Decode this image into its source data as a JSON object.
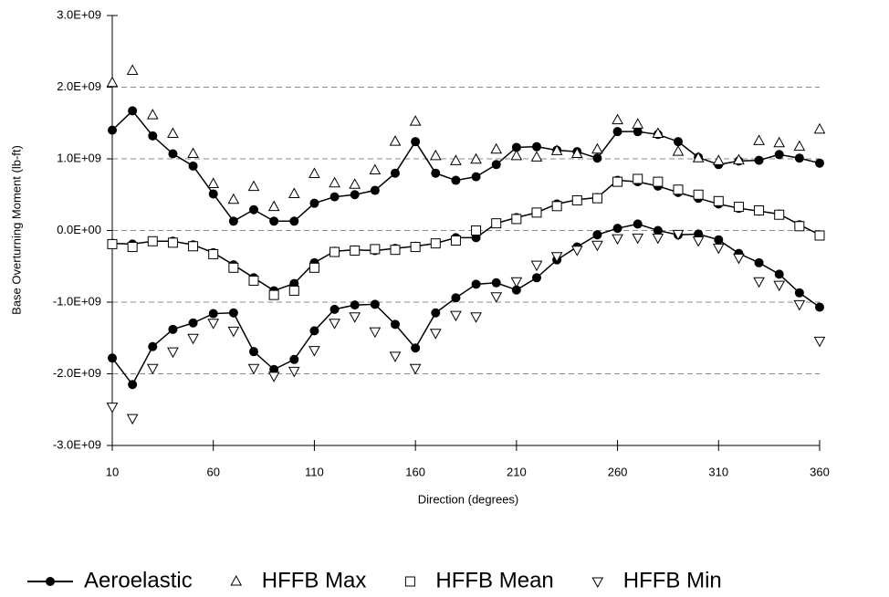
{
  "chart_data": {
    "type": "line",
    "x_label": "Direction (degrees)",
    "y_label": "Base Overturning Moment (lb-ft)",
    "x": [
      10,
      20,
      30,
      40,
      50,
      60,
      70,
      80,
      90,
      100,
      110,
      120,
      130,
      140,
      150,
      160,
      170,
      180,
      190,
      200,
      210,
      220,
      230,
      240,
      250,
      260,
      270,
      280,
      290,
      300,
      310,
      320,
      330,
      340,
      350,
      360
    ],
    "xlim": [
      10,
      360
    ],
    "xticks": [
      10,
      60,
      110,
      160,
      210,
      260,
      310,
      360
    ],
    "ylim": [
      -3000000000.0,
      3000000000.0
    ],
    "yticks": [
      {
        "value": -3000000000.0,
        "label": "-3.0E+09"
      },
      {
        "value": -2000000000.0,
        "label": "-2.0E+09"
      },
      {
        "value": -1000000000.0,
        "label": "-1.0E+09"
      },
      {
        "value": 0,
        "label": "0.0E+00"
      },
      {
        "value": 1000000000.0,
        "label": "1.0E+09"
      },
      {
        "value": 2000000000.0,
        "label": "2.0E+09"
      },
      {
        "value": 3000000000.0,
        "label": "3.0E+09"
      }
    ],
    "grid": true,
    "legend": "bottom",
    "series": [
      {
        "name": "Aeroelastic",
        "color": "#000000",
        "marker": "circle",
        "line": true,
        "values": [
          1400000000.0,
          1670000000.0,
          1320000000.0,
          1070000000.0,
          900000000.0,
          510000000.0,
          130000000.0,
          290000000.0,
          130000000.0,
          130000000.0,
          380000000.0,
          470000000.0,
          500000000.0,
          560000000.0,
          800000000.0,
          1240000000.0,
          800000000.0,
          700000000.0,
          750000000.0,
          920000000.0,
          1160000000.0,
          1170000000.0,
          1120000000.0,
          1100000000.0,
          1010000000.0,
          1380000000.0,
          1380000000.0,
          1340000000.0,
          1240000000.0,
          1020000000.0,
          920000000.0,
          970000000.0,
          980000000.0,
          1060000000.0,
          1010000000.0,
          940000000.0
        ]
      },
      {
        "color": "#000000",
        "marker": "circle",
        "line": true,
        "values": [
          -180000000.0,
          -190000000.0,
          -150000000.0,
          -150000000.0,
          -200000000.0,
          -310000000.0,
          -480000000.0,
          -660000000.0,
          -840000000.0,
          -740000000.0,
          -450000000.0,
          -290000000.0,
          -270000000.0,
          -280000000.0,
          -250000000.0,
          -220000000.0,
          -180000000.0,
          -100000000.0,
          -100000000.0,
          100000000.0,
          180000000.0,
          250000000.0,
          370000000.0,
          430000000.0,
          460000000.0,
          700000000.0,
          680000000.0,
          620000000.0,
          530000000.0,
          450000000.0,
          370000000.0,
          310000000.0,
          270000000.0,
          230000000.0,
          80000000.0,
          -60000000.0
        ]
      },
      {
        "color": "#000000",
        "marker": "circle",
        "line": true,
        "values": [
          -1780000000.0,
          -2150000000.0,
          -1620000000.0,
          -1380000000.0,
          -1290000000.0,
          -1160000000.0,
          -1150000000.0,
          -1690000000.0,
          -1940000000.0,
          -1800000000.0,
          -1400000000.0,
          -1100000000.0,
          -1040000000.0,
          -1030000000.0,
          -1310000000.0,
          -1640000000.0,
          -1150000000.0,
          -940000000.0,
          -750000000.0,
          -730000000.0,
          -830000000.0,
          -660000000.0,
          -410000000.0,
          -230000000.0,
          -60000000.0,
          30000000.0,
          90000000.0,
          0,
          -60000000.0,
          -50000000.0,
          -130000000.0,
          -320000000.0,
          -450000000.0,
          -610000000.0,
          -870000000.0,
          -1070000000.0
        ]
      },
      {
        "name": "HFFB Max",
        "color": "#000000",
        "marker": "triangle-up",
        "line": false,
        "values": [
          2060000000.0,
          2230000000.0,
          1610000000.0,
          1350000000.0,
          1070000000.0,
          650000000.0,
          430000000.0,
          610000000.0,
          330000000.0,
          510000000.0,
          790000000.0,
          660000000.0,
          640000000.0,
          840000000.0,
          1240000000.0,
          1520000000.0,
          1040000000.0,
          970000000.0,
          990000000.0,
          1130000000.0,
          1040000000.0,
          1020000000.0,
          1110000000.0,
          1070000000.0,
          1130000000.0,
          1540000000.0,
          1480000000.0,
          1350000000.0,
          1100000000.0,
          1010000000.0,
          970000000.0,
          980000000.0,
          1250000000.0,
          1220000000.0,
          1170000000.0,
          1410000000.0
        ]
      },
      {
        "name": "HFFB Mean",
        "color": "#000000",
        "marker": "square",
        "line": false,
        "values": [
          -190000000.0,
          -230000000.0,
          -150000000.0,
          -170000000.0,
          -220000000.0,
          -330000000.0,
          -520000000.0,
          -700000000.0,
          -900000000.0,
          -840000000.0,
          -520000000.0,
          -300000000.0,
          -280000000.0,
          -260000000.0,
          -270000000.0,
          -230000000.0,
          -180000000.0,
          -140000000.0,
          0,
          100000000.0,
          160000000.0,
          250000000.0,
          340000000.0,
          420000000.0,
          450000000.0,
          680000000.0,
          720000000.0,
          680000000.0,
          570000000.0,
          500000000.0,
          410000000.0,
          330000000.0,
          280000000.0,
          220000000.0,
          60000000.0,
          -70000000.0
        ]
      },
      {
        "name": "HFFB Min",
        "color": "#000000",
        "marker": "triangle-down",
        "line": false,
        "values": [
          -2460000000.0,
          -2620000000.0,
          -1920000000.0,
          -1690000000.0,
          -1500000000.0,
          -1290000000.0,
          -1400000000.0,
          -1920000000.0,
          -2030000000.0,
          -1960000000.0,
          -1670000000.0,
          -1290000000.0,
          -1200000000.0,
          -1410000000.0,
          -1750000000.0,
          -1920000000.0,
          -1430000000.0,
          -1180000000.0,
          -1200000000.0,
          -920000000.0,
          -710000000.0,
          -480000000.0,
          -360000000.0,
          -270000000.0,
          -200000000.0,
          -110000000.0,
          -100000000.0,
          -100000000.0,
          -50000000.0,
          -140000000.0,
          -240000000.0,
          -380000000.0,
          -710000000.0,
          -760000000.0,
          -1030000000.0,
          -1540000000.0
        ]
      }
    ]
  }
}
